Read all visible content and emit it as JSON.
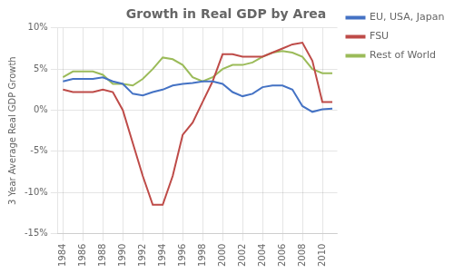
{
  "chart_data": {
    "type": "line",
    "title": "Growth in Real GDP by Area",
    "y_label": "3 Year Average Real GDP Growth",
    "x": [
      1984,
      1985,
      1986,
      1987,
      1988,
      1989,
      1990,
      1991,
      1992,
      1993,
      1994,
      1995,
      1996,
      1997,
      1998,
      1999,
      2000,
      2001,
      2002,
      2003,
      2004,
      2005,
      2006,
      2007,
      2008,
      2009,
      2010,
      2011
    ],
    "series": [
      {
        "name": "EU, USA, Japan",
        "color": "#4472C4",
        "values": [
          3.5,
          3.8,
          3.8,
          3.8,
          4.0,
          3.5,
          3.2,
          2.0,
          1.8,
          2.2,
          2.5,
          3.0,
          3.2,
          3.3,
          3.5,
          3.5,
          3.2,
          2.2,
          1.7,
          2.0,
          2.8,
          3.0,
          3.0,
          2.5,
          0.5,
          -0.2,
          0.1,
          0.2
        ]
      },
      {
        "name": "FSU",
        "color": "#BE4B48",
        "values": [
          2.5,
          2.2,
          2.2,
          2.2,
          2.5,
          2.2,
          0.0,
          -4.0,
          -8.0,
          -11.5,
          -11.5,
          -8.0,
          -3.0,
          -1.5,
          1.0,
          3.5,
          6.8,
          6.8,
          6.5,
          6.5,
          6.5,
          7.0,
          7.5,
          8.0,
          8.2,
          6.0,
          1.0,
          1.0
        ]
      },
      {
        "name": "Rest of World",
        "color": "#9BBB59",
        "values": [
          4.0,
          4.7,
          4.7,
          4.7,
          4.3,
          3.2,
          3.2,
          3.0,
          3.8,
          5.0,
          6.4,
          6.2,
          5.5,
          4.0,
          3.5,
          4.0,
          5.0,
          5.5,
          5.5,
          5.8,
          6.5,
          7.0,
          7.2,
          7.0,
          6.5,
          5.0,
          4.5,
          4.5
        ]
      }
    ],
    "xlim": [
      1983.5,
      2011.5
    ],
    "xticks": [
      1984,
      1986,
      1988,
      1990,
      1992,
      1994,
      1996,
      1998,
      2000,
      2002,
      2004,
      2006,
      2008,
      2010
    ],
    "ylim": [
      -15,
      10
    ],
    "yticks": [
      {
        "value": -15,
        "label": "-15%"
      },
      {
        "value": -10,
        "label": "-10%"
      },
      {
        "value": -5,
        "label": "-5%"
      },
      {
        "value": 0,
        "label": "0%"
      },
      {
        "value": 5,
        "label": "5%"
      },
      {
        "value": 10,
        "label": "10%"
      }
    ],
    "grid": true,
    "legend": "right"
  }
}
